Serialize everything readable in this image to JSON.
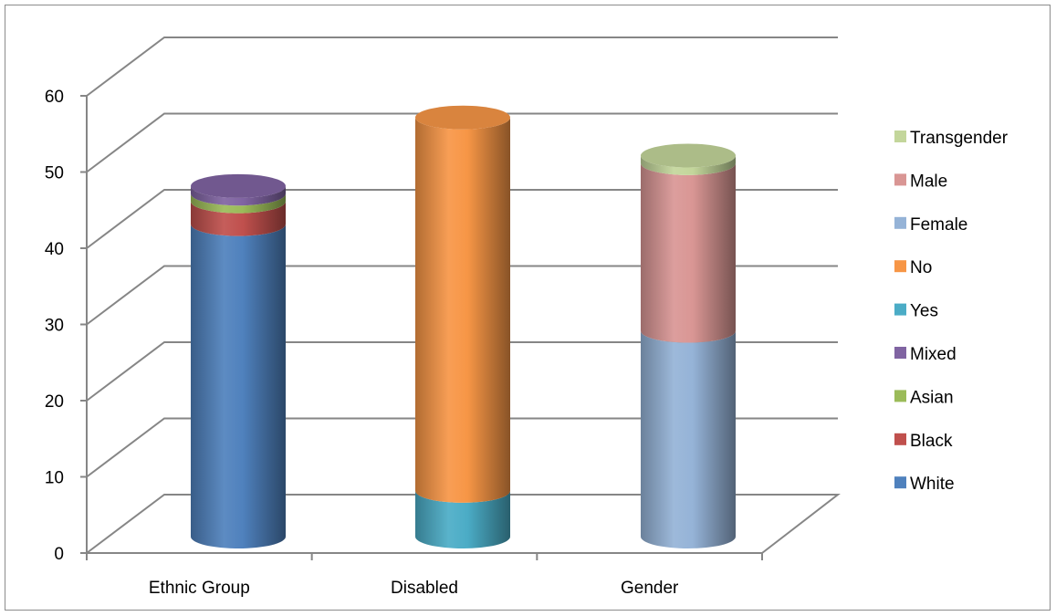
{
  "chart_data": {
    "type": "bar",
    "stacked": true,
    "style": "3d-cylinder",
    "title": "",
    "xlabel": "",
    "ylabel": "",
    "ylim": [
      0,
      60
    ],
    "yticks": [
      0,
      10,
      20,
      30,
      40,
      50,
      60
    ],
    "grid": true,
    "legend_position": "right",
    "categories": [
      "Ethnic Group",
      "Disabled",
      "Gender"
    ],
    "series": [
      {
        "name": "White",
        "color": "#4f81bd",
        "values": [
          41,
          0,
          0
        ]
      },
      {
        "name": "Black",
        "color": "#c0504d",
        "values": [
          3,
          0,
          0
        ]
      },
      {
        "name": "Asian",
        "color": "#9bbb59",
        "values": [
          1,
          0,
          0
        ]
      },
      {
        "name": "Mixed",
        "color": "#8064a2",
        "values": [
          1,
          0,
          0
        ]
      },
      {
        "name": "Yes",
        "color": "#4bacc6",
        "values": [
          0,
          6,
          0
        ]
      },
      {
        "name": "No",
        "color": "#f79646",
        "values": [
          0,
          49,
          0
        ]
      },
      {
        "name": "Female",
        "color": "#95b3d7",
        "values": [
          0,
          0,
          27
        ]
      },
      {
        "name": "Male",
        "color": "#d99694",
        "values": [
          0,
          0,
          22
        ]
      },
      {
        "name": "Transgender",
        "color": "#c3d69b",
        "values": [
          0,
          0,
          1
        ]
      }
    ],
    "legend_order": [
      "Transgender",
      "Male",
      "Female",
      "No",
      "Yes",
      "Mixed",
      "Asian",
      "Black",
      "White"
    ]
  }
}
